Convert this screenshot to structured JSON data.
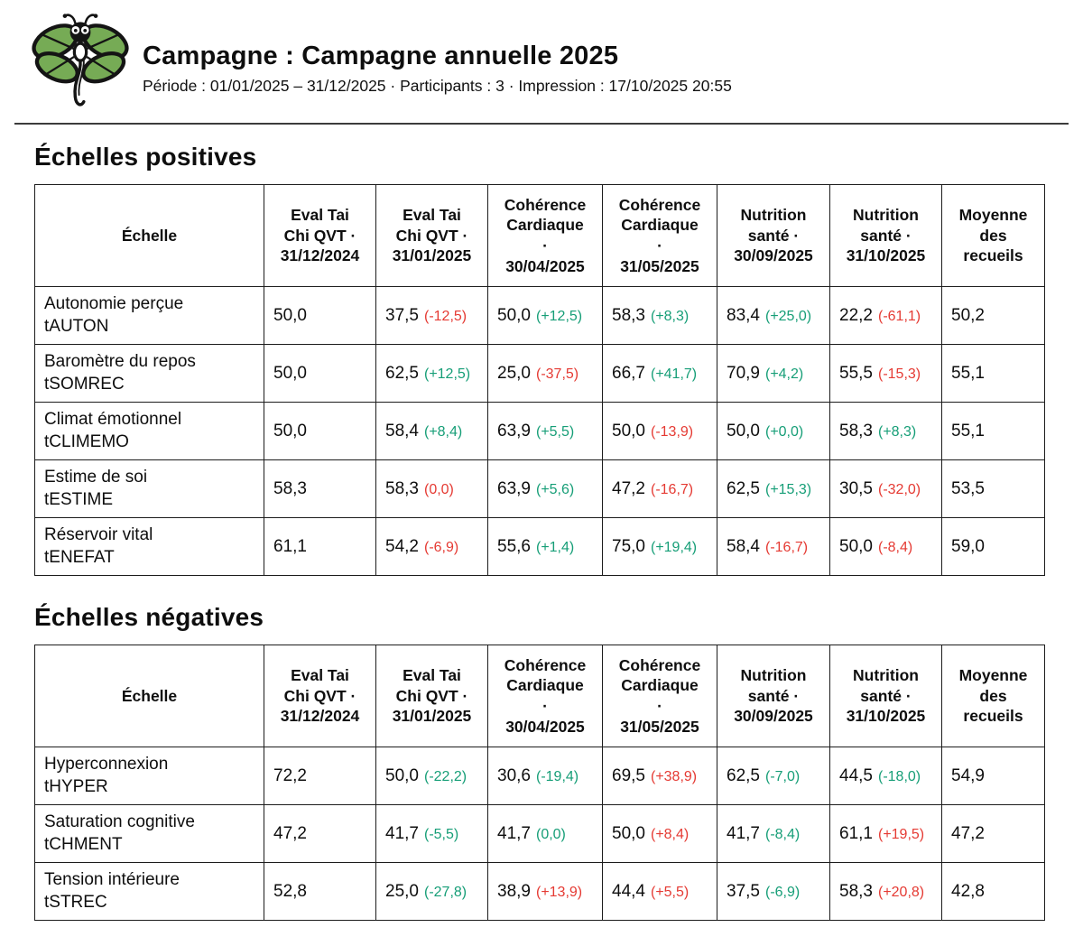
{
  "header": {
    "title": "Campagne : Campagne annuelle 2025",
    "subtitle": "Période : 01/01/2025 – 31/12/2025 · Participants : 3 · Impression : 17/10/2025 20:55",
    "logo": "dragonfly-logo"
  },
  "colors": {
    "delta_positive": "#169e77",
    "delta_negative": "#e53a33",
    "logo_green": "#76ab55",
    "table_border": "#1c1c1c"
  },
  "table_columns": [
    "Échelle",
    "Eval Tai\nChi QVT ·\n31/12/2024",
    "Eval Tai\nChi QVT ·\n31/01/2025",
    "Cohérence\nCardiaque\n·\n30/04/2025",
    "Cohérence\nCardiaque\n·\n31/05/2025",
    "Nutrition\nsanté ·\n30/09/2025",
    "Nutrition\nsanté ·\n31/10/2025",
    "Moyenne\ndes\nrecueils"
  ],
  "sections": [
    {
      "title": "Échelles positives",
      "rows": [
        {
          "label": "Autonomie perçue",
          "code": "tAUTON",
          "cells": [
            {
              "value": "50,0"
            },
            {
              "value": "37,5",
              "delta": "(-12,5)",
              "delta_color": "red"
            },
            {
              "value": "50,0",
              "delta": "(+12,5)",
              "delta_color": "green"
            },
            {
              "value": "58,3",
              "delta": "(+8,3)",
              "delta_color": "green"
            },
            {
              "value": "83,4",
              "delta": "(+25,0)",
              "delta_color": "green"
            },
            {
              "value": "22,2",
              "delta": "(-61,1)",
              "delta_color": "red"
            },
            {
              "value": "50,2"
            }
          ]
        },
        {
          "label": "Baromètre du repos",
          "code": "tSOMREC",
          "cells": [
            {
              "value": "50,0"
            },
            {
              "value": "62,5",
              "delta": "(+12,5)",
              "delta_color": "green"
            },
            {
              "value": "25,0",
              "delta": "(-37,5)",
              "delta_color": "red"
            },
            {
              "value": "66,7",
              "delta": "(+41,7)",
              "delta_color": "green"
            },
            {
              "value": "70,9",
              "delta": "(+4,2)",
              "delta_color": "green"
            },
            {
              "value": "55,5",
              "delta": "(-15,3)",
              "delta_color": "red"
            },
            {
              "value": "55,1"
            }
          ]
        },
        {
          "label": "Climat émotionnel",
          "code": "tCLIMEMO",
          "cells": [
            {
              "value": "50,0"
            },
            {
              "value": "58,4",
              "delta": "(+8,4)",
              "delta_color": "green"
            },
            {
              "value": "63,9",
              "delta": "(+5,5)",
              "delta_color": "green"
            },
            {
              "value": "50,0",
              "delta": "(-13,9)",
              "delta_color": "red"
            },
            {
              "value": "50,0",
              "delta": "(+0,0)",
              "delta_color": "green"
            },
            {
              "value": "58,3",
              "delta": "(+8,3)",
              "delta_color": "green"
            },
            {
              "value": "55,1"
            }
          ]
        },
        {
          "label": "Estime de soi",
          "code": "tESTIME",
          "cells": [
            {
              "value": "58,3"
            },
            {
              "value": "58,3",
              "delta": "(0,0)",
              "delta_color": "red"
            },
            {
              "value": "63,9",
              "delta": "(+5,6)",
              "delta_color": "green"
            },
            {
              "value": "47,2",
              "delta": "(-16,7)",
              "delta_color": "red"
            },
            {
              "value": "62,5",
              "delta": "(+15,3)",
              "delta_color": "green"
            },
            {
              "value": "30,5",
              "delta": "(-32,0)",
              "delta_color": "red"
            },
            {
              "value": "53,5"
            }
          ]
        },
        {
          "label": "Réservoir vital",
          "code": "tENEFAT",
          "cells": [
            {
              "value": "61,1"
            },
            {
              "value": "54,2",
              "delta": "(-6,9)",
              "delta_color": "red"
            },
            {
              "value": "55,6",
              "delta": "(+1,4)",
              "delta_color": "green"
            },
            {
              "value": "75,0",
              "delta": "(+19,4)",
              "delta_color": "green"
            },
            {
              "value": "58,4",
              "delta": "(-16,7)",
              "delta_color": "red"
            },
            {
              "value": "50,0",
              "delta": "(-8,4)",
              "delta_color": "red"
            },
            {
              "value": "59,0"
            }
          ]
        }
      ]
    },
    {
      "title": "Échelles négatives",
      "rows": [
        {
          "label": "Hyperconnexion",
          "code": "tHYPER",
          "cells": [
            {
              "value": "72,2"
            },
            {
              "value": "50,0",
              "delta": "(-22,2)",
              "delta_color": "green"
            },
            {
              "value": "30,6",
              "delta": "(-19,4)",
              "delta_color": "green"
            },
            {
              "value": "69,5",
              "delta": "(+38,9)",
              "delta_color": "red"
            },
            {
              "value": "62,5",
              "delta": "(-7,0)",
              "delta_color": "green"
            },
            {
              "value": "44,5",
              "delta": "(-18,0)",
              "delta_color": "green"
            },
            {
              "value": "54,9"
            }
          ]
        },
        {
          "label": "Saturation cognitive",
          "code": "tCHMENT",
          "cells": [
            {
              "value": "47,2"
            },
            {
              "value": "41,7",
              "delta": "(-5,5)",
              "delta_color": "green"
            },
            {
              "value": "41,7",
              "delta": "(0,0)",
              "delta_color": "green"
            },
            {
              "value": "50,0",
              "delta": "(+8,4)",
              "delta_color": "red"
            },
            {
              "value": "41,7",
              "delta": "(-8,4)",
              "delta_color": "green"
            },
            {
              "value": "61,1",
              "delta": "(+19,5)",
              "delta_color": "red"
            },
            {
              "value": "47,2"
            }
          ]
        },
        {
          "label": "Tension intérieure",
          "code": "tSTREC",
          "cells": [
            {
              "value": "52,8"
            },
            {
              "value": "25,0",
              "delta": "(-27,8)",
              "delta_color": "green"
            },
            {
              "value": "38,9",
              "delta": "(+13,9)",
              "delta_color": "red"
            },
            {
              "value": "44,4",
              "delta": "(+5,5)",
              "delta_color": "red"
            },
            {
              "value": "37,5",
              "delta": "(-6,9)",
              "delta_color": "green"
            },
            {
              "value": "58,3",
              "delta": "(+20,8)",
              "delta_color": "red"
            },
            {
              "value": "42,8"
            }
          ]
        }
      ]
    }
  ]
}
